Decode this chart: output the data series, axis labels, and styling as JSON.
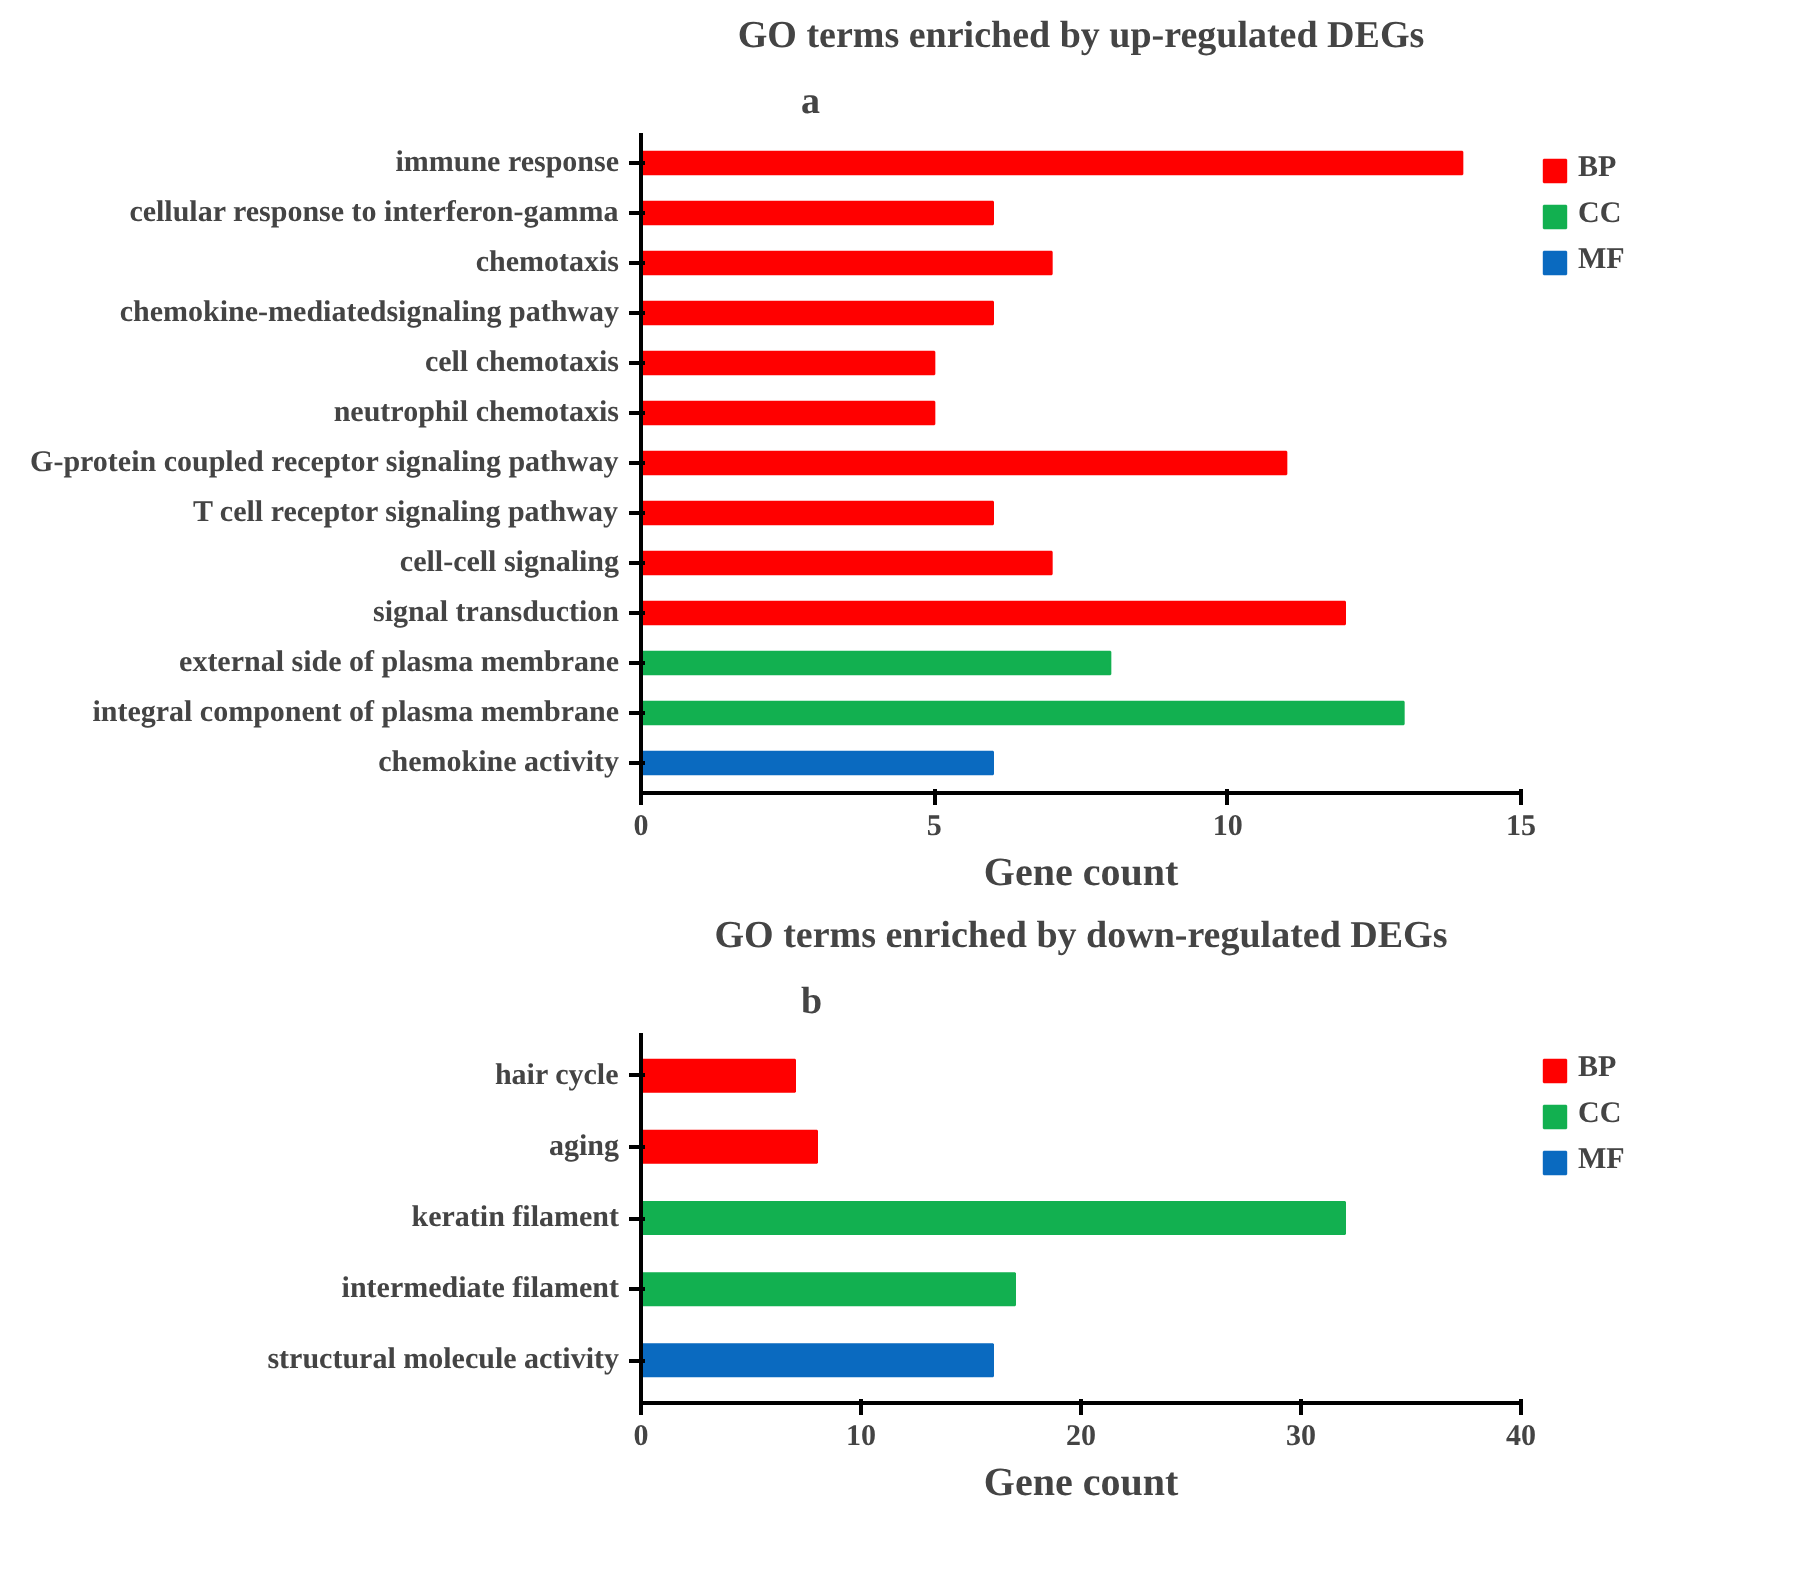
{
  "chart_data": [
    {
      "type": "bar",
      "orientation": "horizontal",
      "title": "GO terms enriched by up-regulated DEGs",
      "xlabel": "Gene count",
      "annotations": [
        "a"
      ],
      "categories": [
        "immune response",
        "cellular response to interferon-gamma",
        "chemotaxis",
        "chemokine-mediatedsignaling pathway",
        "cell chemotaxis",
        "neutrophil chemotaxis",
        "G-protein coupled receptor signaling pathway",
        "T cell receptor signaling pathway",
        "cell-cell signaling",
        "signal transduction",
        "external side of plasma membrane",
        "integral component of plasma membrane",
        "chemokine activity"
      ],
      "series": [
        {
          "name": "BP",
          "color": "#ff0000",
          "values": [
            14,
            6,
            7,
            6,
            5,
            5,
            11,
            6,
            7,
            12,
            null,
            null,
            null
          ]
        },
        {
          "name": "CC",
          "color": "#12b050",
          "values": [
            null,
            null,
            null,
            null,
            null,
            null,
            null,
            null,
            null,
            null,
            8,
            13,
            null
          ]
        },
        {
          "name": "MF",
          "color": "#0a6ac0",
          "values": [
            null,
            null,
            null,
            null,
            null,
            null,
            null,
            null,
            null,
            null,
            null,
            null,
            6
          ]
        }
      ],
      "xlim": [
        0,
        15
      ],
      "xticks": [
        0,
        5,
        10,
        15
      ],
      "grid": false,
      "legend": "top right"
    },
    {
      "type": "bar",
      "orientation": "horizontal",
      "title": "GO terms enriched by down-regulated DEGs",
      "xlabel": "Gene count",
      "annotations": [
        "b"
      ],
      "categories": [
        "hair cycle",
        "aging",
        "keratin filament",
        "intermediate filament",
        "structural molecule activity"
      ],
      "series": [
        {
          "name": "BP",
          "color": "#ff0000",
          "values": [
            7,
            8,
            null,
            null,
            null
          ]
        },
        {
          "name": "CC",
          "color": "#12b050",
          "values": [
            null,
            null,
            32,
            17,
            null
          ]
        },
        {
          "name": "MF",
          "color": "#0a6ac0",
          "values": [
            null,
            null,
            null,
            null,
            16
          ]
        }
      ],
      "xlim": [
        0,
        40
      ],
      "xticks": [
        0,
        10,
        20,
        30,
        40
      ],
      "grid": false,
      "legend": "top right"
    }
  ]
}
